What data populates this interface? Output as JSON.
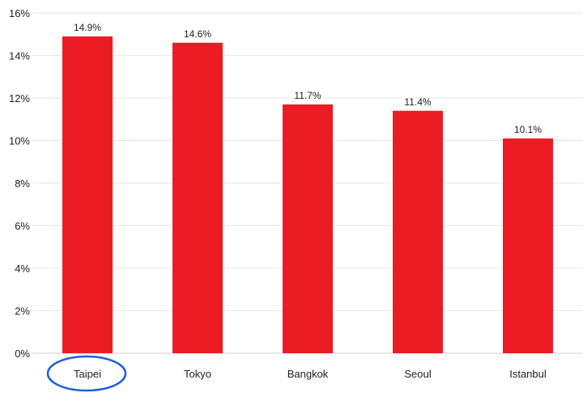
{
  "chart_data": {
    "type": "bar",
    "categories": [
      "Taipei",
      "Tokyo",
      "Bangkok",
      "Seoul",
      "Istanbul"
    ],
    "values": [
      14.9,
      14.6,
      11.7,
      11.4,
      10.1
    ],
    "value_labels": [
      "14.9%",
      "14.6%",
      "11.7%",
      "11.4%",
      "10.1%"
    ],
    "y_ticks": [
      0,
      2,
      4,
      6,
      8,
      10,
      12,
      14,
      16
    ],
    "y_tick_labels": [
      "0%",
      "2%",
      "4%",
      "6%",
      "8%",
      "10%",
      "12%",
      "14%",
      "16%"
    ],
    "ylim": [
      0,
      16
    ],
    "grid": true,
    "bar_color": "#ec1c24",
    "highlight": {
      "category": "Taipei",
      "shape": "ellipse",
      "color": "#1f5fd6"
    }
  }
}
